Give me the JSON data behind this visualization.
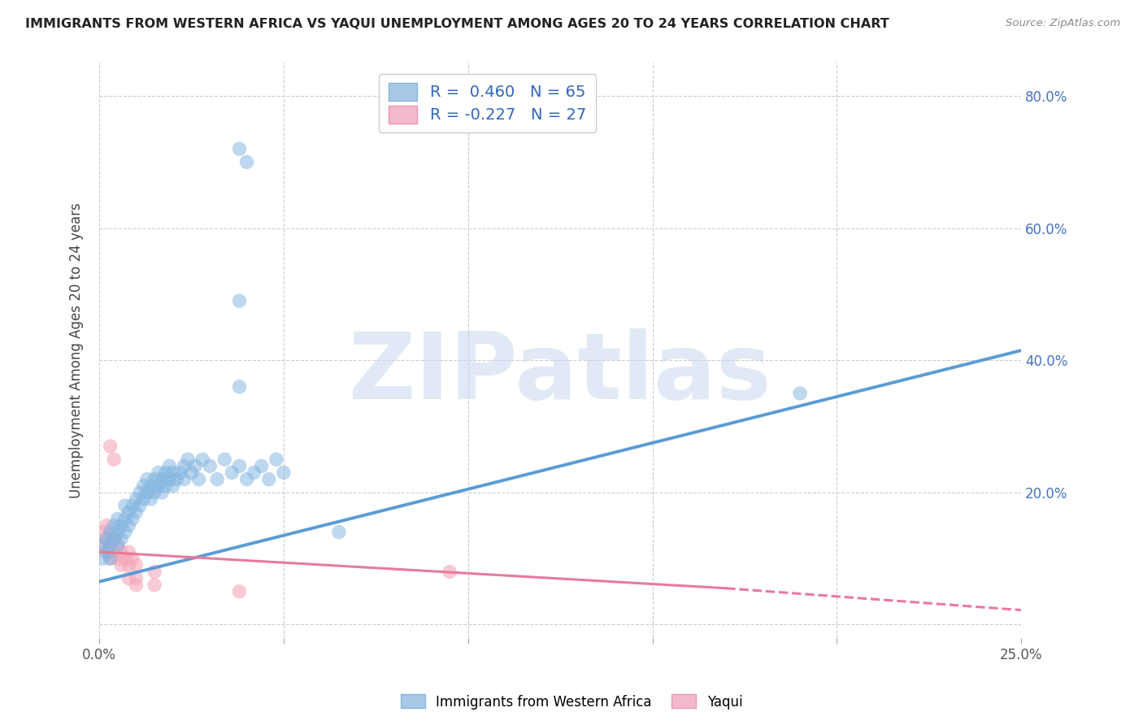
{
  "title": "IMMIGRANTS FROM WESTERN AFRICA VS YAQUI UNEMPLOYMENT AMONG AGES 20 TO 24 YEARS CORRELATION CHART",
  "source": "Source: ZipAtlas.com",
  "ylabel": "Unemployment Among Ages 20 to 24 years",
  "xlim": [
    0.0,
    0.25
  ],
  "ylim": [
    -0.02,
    0.85
  ],
  "xticks": [
    0.0,
    0.05,
    0.1,
    0.15,
    0.2,
    0.25
  ],
  "yticks": [
    0.0,
    0.2,
    0.4,
    0.6,
    0.8
  ],
  "watermark": "ZIPatlas",
  "blue_scatter": [
    [
      0.001,
      0.1
    ],
    [
      0.001,
      0.12
    ],
    [
      0.002,
      0.11
    ],
    [
      0.002,
      0.13
    ],
    [
      0.003,
      0.12
    ],
    [
      0.003,
      0.14
    ],
    [
      0.003,
      0.1
    ],
    [
      0.004,
      0.13
    ],
    [
      0.004,
      0.15
    ],
    [
      0.005,
      0.14
    ],
    [
      0.005,
      0.12
    ],
    [
      0.005,
      0.16
    ],
    [
      0.006,
      0.15
    ],
    [
      0.006,
      0.13
    ],
    [
      0.007,
      0.16
    ],
    [
      0.007,
      0.14
    ],
    [
      0.007,
      0.18
    ],
    [
      0.008,
      0.15
    ],
    [
      0.008,
      0.17
    ],
    [
      0.009,
      0.16
    ],
    [
      0.009,
      0.18
    ],
    [
      0.01,
      0.17
    ],
    [
      0.01,
      0.19
    ],
    [
      0.011,
      0.18
    ],
    [
      0.011,
      0.2
    ],
    [
      0.012,
      0.19
    ],
    [
      0.012,
      0.21
    ],
    [
      0.013,
      0.2
    ],
    [
      0.013,
      0.22
    ],
    [
      0.014,
      0.21
    ],
    [
      0.014,
      0.19
    ],
    [
      0.015,
      0.22
    ],
    [
      0.015,
      0.2
    ],
    [
      0.016,
      0.21
    ],
    [
      0.016,
      0.23
    ],
    [
      0.017,
      0.22
    ],
    [
      0.017,
      0.2
    ],
    [
      0.018,
      0.23
    ],
    [
      0.018,
      0.21
    ],
    [
      0.019,
      0.22
    ],
    [
      0.019,
      0.24
    ],
    [
      0.02,
      0.23
    ],
    [
      0.02,
      0.21
    ],
    [
      0.021,
      0.22
    ],
    [
      0.022,
      0.23
    ],
    [
      0.023,
      0.24
    ],
    [
      0.023,
      0.22
    ],
    [
      0.024,
      0.25
    ],
    [
      0.025,
      0.23
    ],
    [
      0.026,
      0.24
    ],
    [
      0.027,
      0.22
    ],
    [
      0.028,
      0.25
    ],
    [
      0.03,
      0.24
    ],
    [
      0.032,
      0.22
    ],
    [
      0.034,
      0.25
    ],
    [
      0.036,
      0.23
    ],
    [
      0.038,
      0.24
    ],
    [
      0.04,
      0.22
    ],
    [
      0.042,
      0.23
    ],
    [
      0.044,
      0.24
    ],
    [
      0.046,
      0.22
    ],
    [
      0.048,
      0.25
    ],
    [
      0.05,
      0.23
    ],
    [
      0.038,
      0.36
    ],
    [
      0.065,
      0.14
    ],
    [
      0.038,
      0.49
    ],
    [
      0.19,
      0.35
    ],
    [
      0.038,
      0.72
    ],
    [
      0.04,
      0.7
    ]
  ],
  "pink_scatter": [
    [
      0.001,
      0.12
    ],
    [
      0.001,
      0.14
    ],
    [
      0.002,
      0.13
    ],
    [
      0.002,
      0.11
    ],
    [
      0.002,
      0.15
    ],
    [
      0.003,
      0.12
    ],
    [
      0.003,
      0.1
    ],
    [
      0.004,
      0.13
    ],
    [
      0.004,
      0.11
    ],
    [
      0.005,
      0.12
    ],
    [
      0.005,
      0.1
    ],
    [
      0.006,
      0.11
    ],
    [
      0.006,
      0.09
    ],
    [
      0.007,
      0.1
    ],
    [
      0.008,
      0.11
    ],
    [
      0.008,
      0.09
    ],
    [
      0.009,
      0.1
    ],
    [
      0.01,
      0.09
    ],
    [
      0.01,
      0.07
    ],
    [
      0.003,
      0.27
    ],
    [
      0.004,
      0.25
    ],
    [
      0.008,
      0.07
    ],
    [
      0.01,
      0.06
    ],
    [
      0.015,
      0.08
    ],
    [
      0.015,
      0.06
    ],
    [
      0.095,
      0.08
    ],
    [
      0.038,
      0.05
    ]
  ],
  "blue_line": {
    "x0": 0.0,
    "y0": 0.065,
    "x1": 0.25,
    "y1": 0.415
  },
  "pink_line_solid": {
    "x0": 0.0,
    "y0": 0.11,
    "x1": 0.17,
    "y1": 0.055
  },
  "pink_line_dash": {
    "x0": 0.17,
    "y0": 0.055,
    "x1": 0.25,
    "y1": 0.022
  },
  "blue_color": "#5b9bd5",
  "blue_scatter_color": "#7fb3e0",
  "pink_color": "#e87a9a",
  "pink_scatter_color": "#f4a7b9",
  "background_color": "#ffffff"
}
